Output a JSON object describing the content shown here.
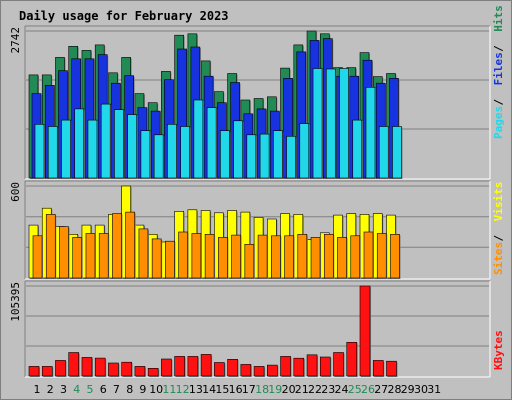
{
  "chart_data": {
    "type": "bar",
    "title": "Daily usage for February 2023",
    "colors": {
      "hits": "#218a55",
      "files": "#1733e0",
      "pages": "#21d8ea",
      "visits": "#ffff00",
      "sites": "#ff8f00",
      "kbytes": "#ff1111",
      "weekend": "#218a55",
      "weekday": "#000000"
    },
    "x": [
      "1",
      "2",
      "3",
      "4",
      "5",
      "6",
      "7",
      "8",
      "9",
      "10",
      "11",
      "12",
      "13",
      "14",
      "15",
      "16",
      "17",
      "18",
      "19",
      "20",
      "21",
      "22",
      "23",
      "24",
      "25",
      "26",
      "27",
      "28",
      "29",
      "30",
      "31"
    ],
    "weekend_days": [
      4,
      5,
      11,
      12,
      18,
      19,
      25,
      26
    ],
    "panels": [
      {
        "id": "hits-files-pages",
        "ymax_label": "2742",
        "ymax": 2742,
        "side_labels": [
          "Pages",
          "Files",
          "Hits"
        ],
        "series": [
          {
            "name": "Hits",
            "color_key": "hits",
            "values": [
              1924,
              1924,
              2249,
              2457,
              2380,
              2483,
              1963,
              2249,
              1574,
              1404,
              1989,
              2664,
              2690,
              2184,
              1612,
              1949,
              1455,
              1482,
              1514,
              2050,
              2483,
              2742,
              2690,
              2059,
              2059,
              2340,
              1891,
              1949
            ]
          },
          {
            "name": "Files",
            "color_key": "files",
            "values": [
              1574,
              1729,
              2001,
              2223,
              2223,
              2301,
              1768,
              1909,
              1314,
              1248,
              1833,
              2406,
              2444,
              1898,
              1404,
              1781,
              1197,
              1288,
              1248,
              1859,
              2353,
              2567,
              2600,
              1898,
              1898,
              2198,
              1768,
              1859
            ]
          },
          {
            "name": "Pages",
            "color_key": "pages",
            "values": [
              1001,
              961,
              1080,
              1288,
              1080,
              1379,
              1274,
              1183,
              883,
              805,
              1001,
              961,
              1455,
              1314,
              883,
              1067,
              805,
              819,
              883,
              778,
              1015,
              2043,
              2033,
              2043,
              1080,
              1691,
              961,
              961
            ]
          }
        ]
      },
      {
        "id": "visits-sites",
        "ymax_label": "600",
        "ymax": 600,
        "side_labels": [
          "Sites",
          "Visits",
          ""
        ],
        "series": [
          {
            "name": "Visits",
            "color_key": "visits",
            "values": [
              345,
              455,
              335,
              285,
              345,
              345,
              415,
              600,
              345,
              285,
              235,
              435,
              445,
              440,
              425,
              440,
              430,
              395,
              385,
              420,
              415,
              250,
              295,
              410,
              420,
              415,
              420,
              410
            ]
          },
          {
            "name": "Sites",
            "color_key": "sites",
            "values": [
              275,
              415,
              335,
              265,
              290,
              290,
              420,
              430,
              320,
              255,
              240,
              300,
              290,
              285,
              265,
              280,
              220,
              280,
              275,
              275,
              285,
              265,
              285,
              265,
              275,
              300,
              290,
              285
            ]
          }
        ]
      },
      {
        "id": "kbytes",
        "ymax_label": "105395",
        "ymax": 105395,
        "side_labels": [
          "KBytes",
          "",
          ""
        ],
        "series": [
          {
            "name": "KBytes",
            "color_key": "kbytes",
            "values": [
              11300,
              11300,
              18300,
              27500,
              21800,
              21000,
              15200,
              16200,
              11300,
              9000,
              19900,
              23000,
              23000,
              25300,
              15800,
              19500,
              13600,
              11300,
              12800,
              23000,
              20900,
              24800,
              22200,
              27500,
              39500,
              105395,
              18300,
              17300
            ]
          }
        ]
      }
    ]
  }
}
